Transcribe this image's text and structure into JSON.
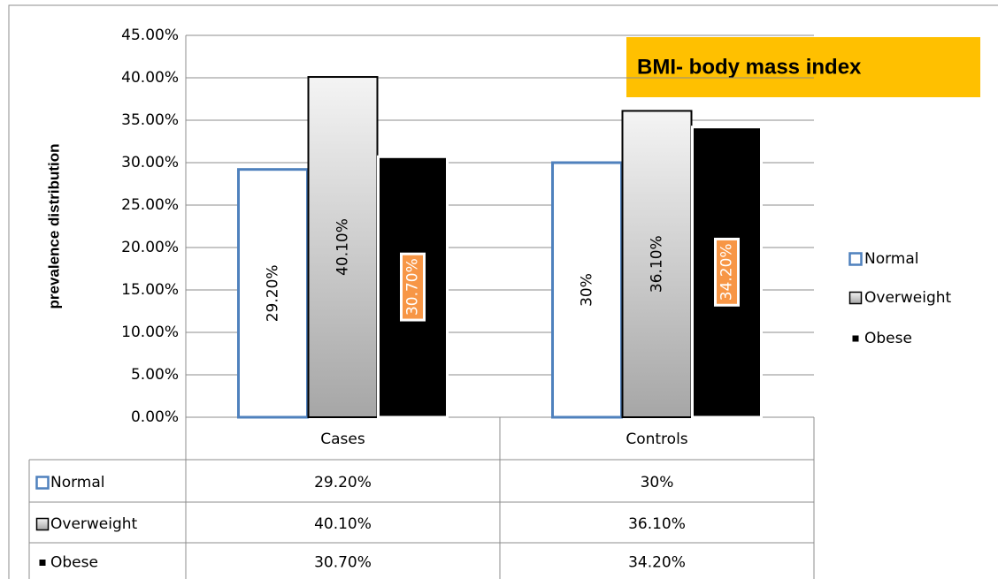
{
  "chart_data": {
    "type": "bar",
    "title": "BMI- body mass index",
    "y_label": "prevalence distribution",
    "categories": [
      "Cases",
      "Controls"
    ],
    "series": [
      {
        "name": "Normal",
        "color": "#4f81bd",
        "values": [
          29.2,
          30
        ],
        "value_labels": [
          "29.20%",
          "30%"
        ]
      },
      {
        "name": "Overweight",
        "color": "#b0b0b0",
        "values": [
          40.1,
          36.1
        ],
        "value_labels": [
          "40.10%",
          "36.10%"
        ]
      },
      {
        "name": "Obese",
        "color": "#000000",
        "values": [
          30.7,
          34.2
        ],
        "value_labels": [
          "30.70%",
          "34.20%"
        ]
      }
    ],
    "ylim": [
      0,
      45
    ],
    "yticks": [
      {
        "value": 0,
        "label": "0.00%"
      },
      {
        "value": 5,
        "label": "5.00%"
      },
      {
        "value": 10,
        "label": "10.00%"
      },
      {
        "value": 15,
        "label": "15.00%"
      },
      {
        "value": 20,
        "label": "20.00%"
      },
      {
        "value": 25,
        "label": "25.00%"
      },
      {
        "value": 30,
        "label": "30.00%"
      },
      {
        "value": 35,
        "label": "35.00%"
      },
      {
        "value": 40,
        "label": "40.00%"
      },
      {
        "value": 45,
        "label": "45.00%"
      }
    ],
    "grid": true,
    "legend": "right",
    "data_table": true
  }
}
